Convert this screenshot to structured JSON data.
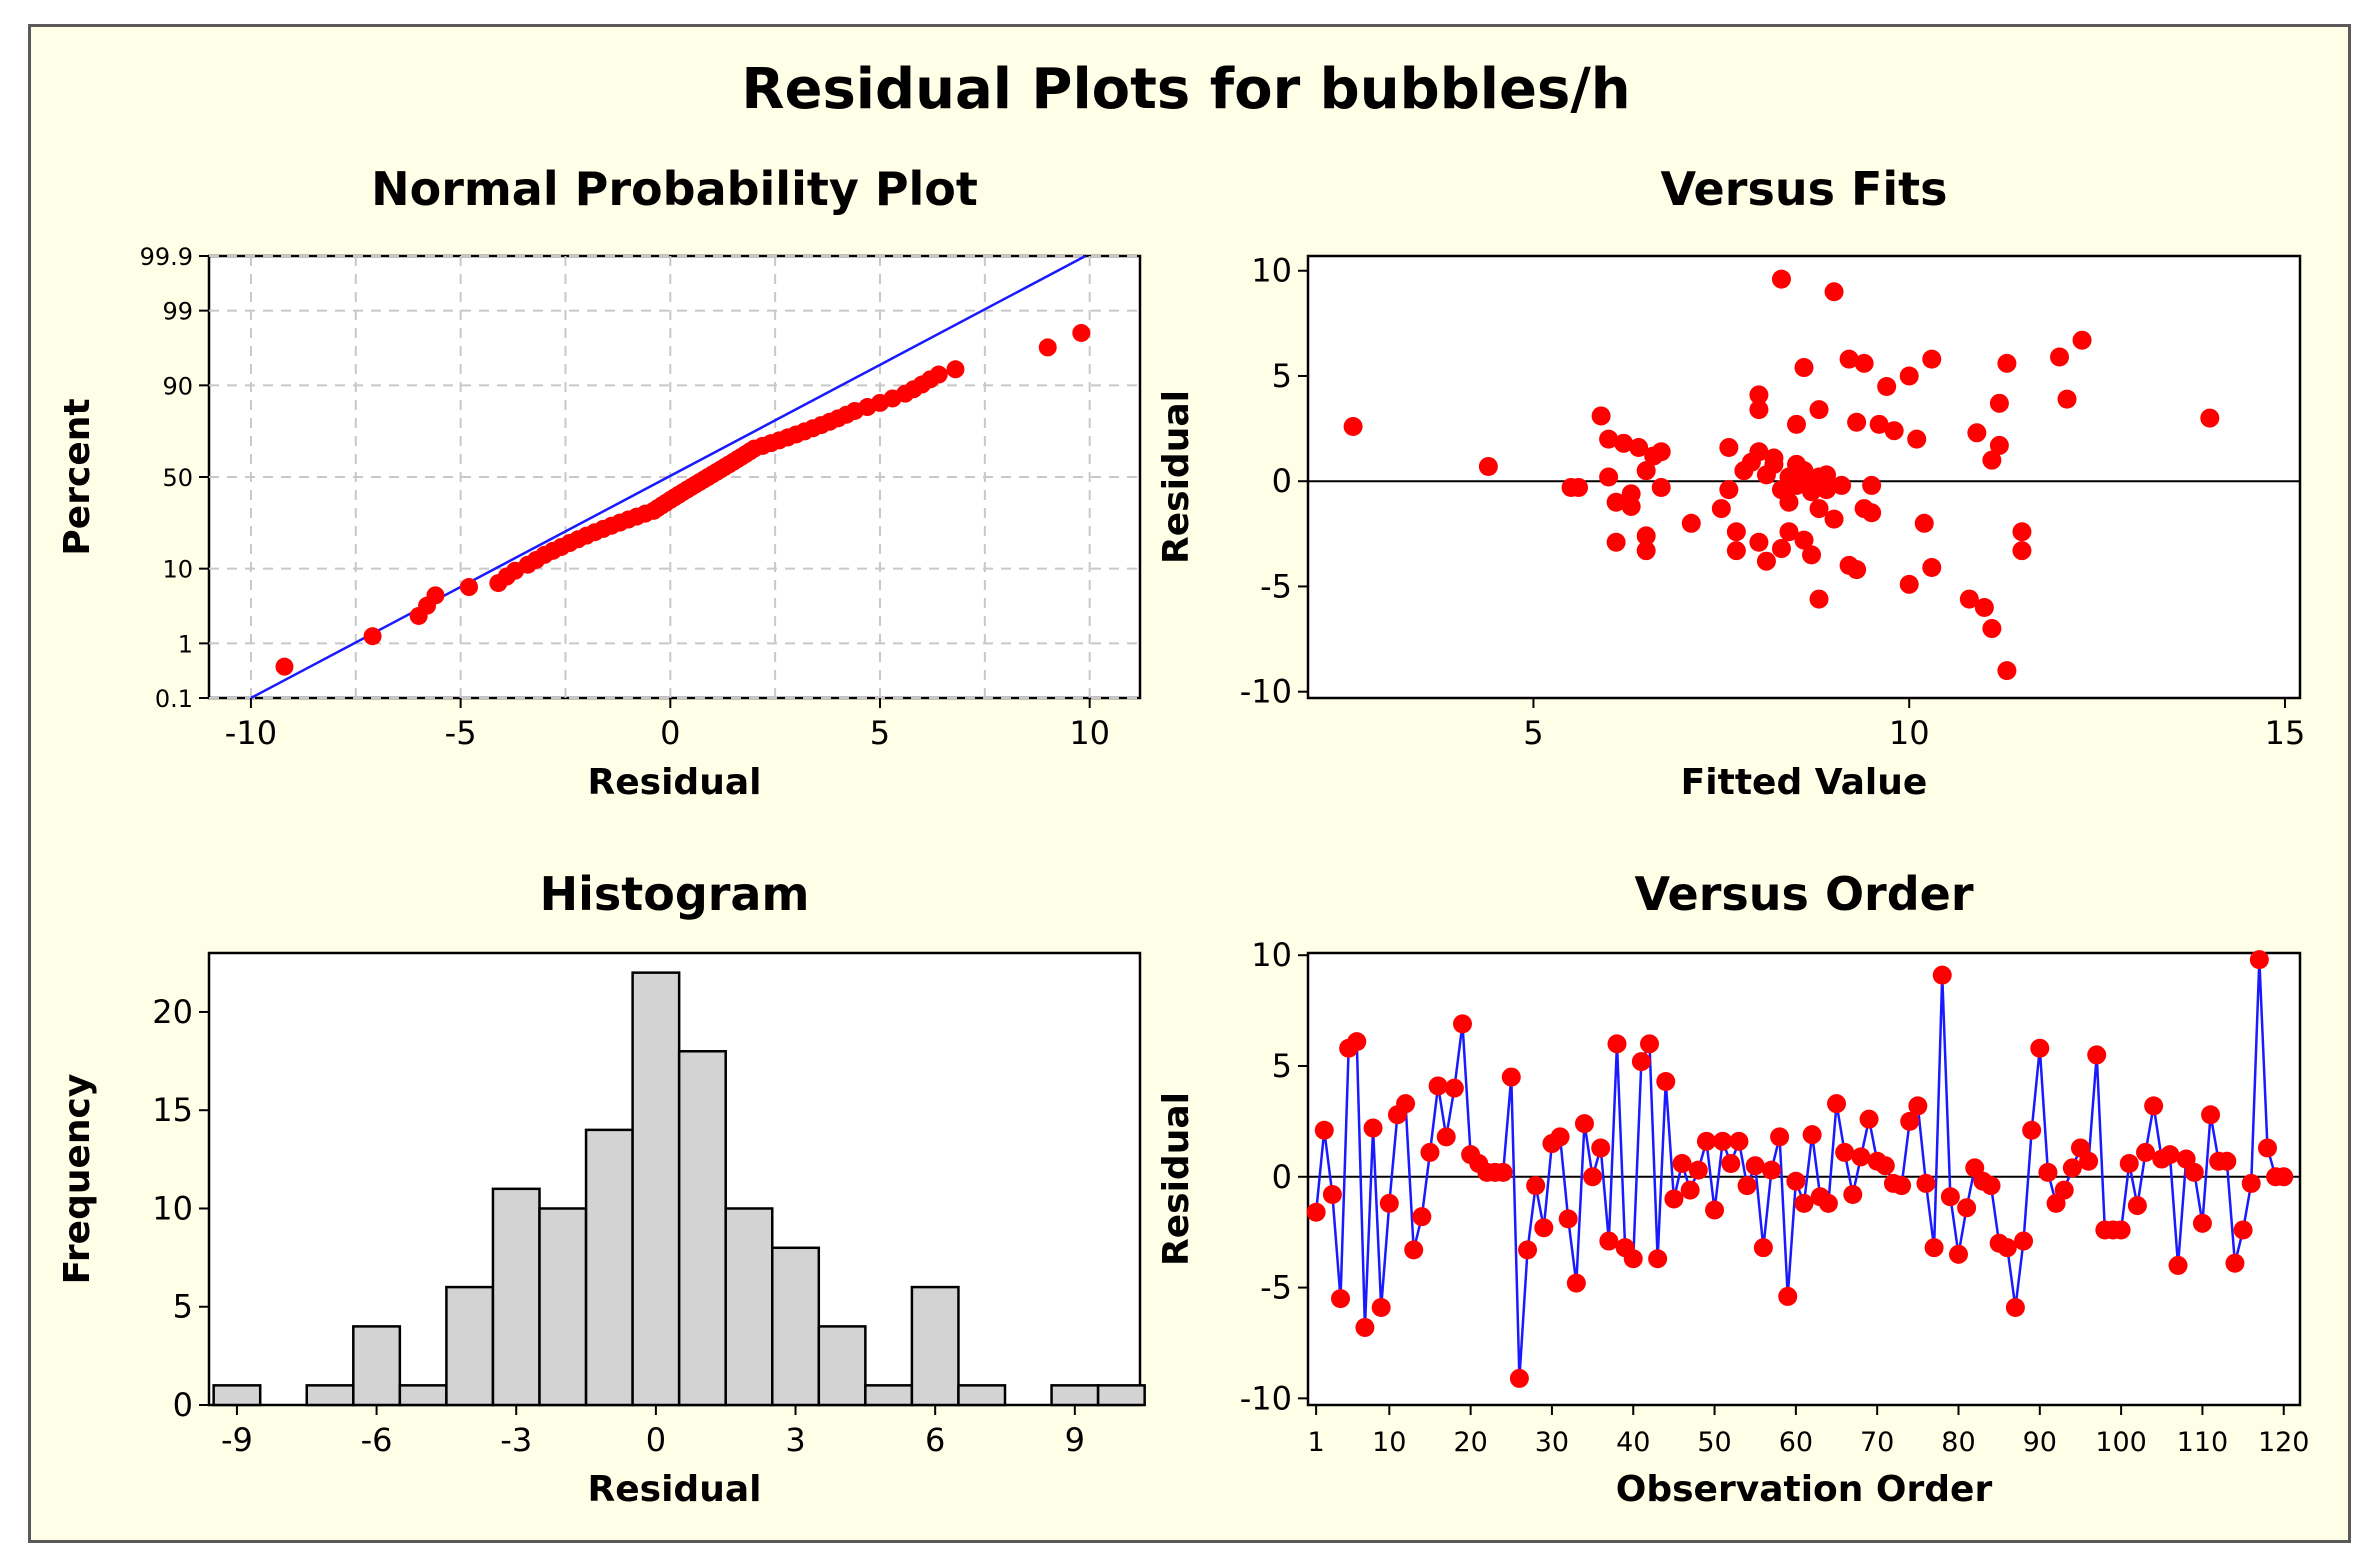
{
  "window": {
    "title": "Residual Plots for bubbles/h"
  },
  "colors": {
    "point": "#ff0000",
    "line": "#1a1aff",
    "bar_fill": "#d3d3d3",
    "bar_stroke": "#000000",
    "background": "#ffffe8",
    "grid": "#c8c8c8"
  },
  "chart_data": [
    {
      "type": "scatter",
      "title": "Normal Probability Plot",
      "xlabel": "Residual",
      "ylabel": "Percent",
      "xlim": [
        -11.0,
        11.2
      ],
      "xticks": [
        -10,
        -5,
        0,
        5,
        10
      ],
      "xtick_labels": [
        "-10",
        "-5",
        "0",
        "5",
        "10"
      ],
      "yticks": [
        0.1,
        1,
        10,
        50,
        90,
        99,
        99.9
      ],
      "ytick_labels": [
        "0.1",
        "1",
        "10",
        "50",
        "90",
        "99",
        "99.9"
      ],
      "grid": true,
      "fit_line": {
        "x": [
          -10.0,
          9.9
        ],
        "y": [
          0.1,
          99.9
        ]
      },
      "points": [
        [
          -9.2,
          0.4
        ],
        [
          -7.1,
          1.3
        ],
        [
          -6.0,
          2.6
        ],
        [
          -5.8,
          3.6
        ],
        [
          -5.6,
          4.9
        ],
        [
          -4.8,
          6.2
        ],
        [
          -4.1,
          6.9
        ],
        [
          -3.9,
          8.2
        ],
        [
          -3.7,
          9.5
        ],
        [
          -3.4,
          11.0
        ],
        [
          -3.2,
          12.3
        ],
        [
          -3.0,
          13.8
        ],
        [
          -2.8,
          15.1
        ],
        [
          -2.6,
          16.4
        ],
        [
          -2.4,
          17.8
        ],
        [
          -2.2,
          19.2
        ],
        [
          -2.0,
          20.6
        ],
        [
          -1.8,
          22.0
        ],
        [
          -1.6,
          23.4
        ],
        [
          -1.4,
          24.8
        ],
        [
          -1.2,
          26.2
        ],
        [
          -1.0,
          27.6
        ],
        [
          -0.8,
          29.0
        ],
        [
          -0.6,
          30.4
        ],
        [
          -0.4,
          31.8
        ],
        [
          -0.3,
          33.2
        ],
        [
          -0.2,
          34.6
        ],
        [
          -0.1,
          36.0
        ],
        [
          0.0,
          37.4
        ],
        [
          0.1,
          38.8
        ],
        [
          0.2,
          40.2
        ],
        [
          0.3,
          41.6
        ],
        [
          0.4,
          43.0
        ],
        [
          0.5,
          44.4
        ],
        [
          0.6,
          45.8
        ],
        [
          0.7,
          47.2
        ],
        [
          0.8,
          48.6
        ],
        [
          0.9,
          50.0
        ],
        [
          1.0,
          51.4
        ],
        [
          1.1,
          52.8
        ],
        [
          1.2,
          54.2
        ],
        [
          1.3,
          55.6
        ],
        [
          1.4,
          57.0
        ],
        [
          1.5,
          58.4
        ],
        [
          1.6,
          59.8
        ],
        [
          1.7,
          61.2
        ],
        [
          1.8,
          62.6
        ],
        [
          1.9,
          64.0
        ],
        [
          2.0,
          65.4
        ],
        [
          2.2,
          66.8
        ],
        [
          2.4,
          68.2
        ],
        [
          2.6,
          69.6
        ],
        [
          2.8,
          71.0
        ],
        [
          3.0,
          72.4
        ],
        [
          3.2,
          73.8
        ],
        [
          3.4,
          75.2
        ],
        [
          3.6,
          76.6
        ],
        [
          3.8,
          78.0
        ],
        [
          4.0,
          79.4
        ],
        [
          4.2,
          80.8
        ],
        [
          4.4,
          82.2
        ],
        [
          4.7,
          83.6
        ],
        [
          5.0,
          85.0
        ],
        [
          5.3,
          86.4
        ],
        [
          5.6,
          87.8
        ],
        [
          5.8,
          89.0
        ],
        [
          6.0,
          90.2
        ],
        [
          6.2,
          91.4
        ],
        [
          6.4,
          92.4
        ],
        [
          6.8,
          93.4
        ],
        [
          9.0,
          96.5
        ],
        [
          9.8,
          97.8
        ]
      ]
    },
    {
      "type": "scatter",
      "title": "Versus Fits",
      "xlabel": "Fitted Value",
      "ylabel": "Residual",
      "xlim": [
        2.0,
        15.2
      ],
      "ylim": [
        -10.3,
        10.7
      ],
      "xticks": [
        5,
        10,
        15
      ],
      "xtick_labels": [
        "5",
        "10",
        "15"
      ],
      "yticks": [
        -10,
        -5,
        0,
        5,
        10
      ],
      "ytick_labels": [
        "-10",
        "-5",
        "0",
        "5",
        "10"
      ],
      "reference_line_y": 0,
      "points": [
        [
          2.6,
          2.6
        ],
        [
          4.4,
          0.7
        ],
        [
          5.5,
          -0.3
        ],
        [
          5.6,
          -0.3
        ],
        [
          5.9,
          3.1
        ],
        [
          6.0,
          2.0
        ],
        [
          6.0,
          0.2
        ],
        [
          6.1,
          -1.0
        ],
        [
          6.1,
          -2.9
        ],
        [
          6.2,
          1.8
        ],
        [
          6.3,
          -0.6
        ],
        [
          6.3,
          -1.2
        ],
        [
          6.4,
          1.6
        ],
        [
          6.5,
          0.5
        ],
        [
          6.5,
          -2.6
        ],
        [
          6.5,
          -3.3
        ],
        [
          6.6,
          1.2
        ],
        [
          6.7,
          1.4
        ],
        [
          6.7,
          -0.3
        ],
        [
          7.1,
          -2.0
        ],
        [
          7.5,
          -1.3
        ],
        [
          7.6,
          1.6
        ],
        [
          7.6,
          -0.4
        ],
        [
          7.7,
          -2.4
        ],
        [
          7.7,
          -3.3
        ],
        [
          7.8,
          0.5
        ],
        [
          7.9,
          0.9
        ],
        [
          8.0,
          3.4
        ],
        [
          8.0,
          4.1
        ],
        [
          8.0,
          1.4
        ],
        [
          8.0,
          -2.9
        ],
        [
          8.1,
          0.3
        ],
        [
          8.1,
          -3.8
        ],
        [
          8.2,
          0.8
        ],
        [
          8.2,
          1.1
        ],
        [
          8.3,
          -0.4
        ],
        [
          8.3,
          -3.2
        ],
        [
          8.3,
          9.6
        ],
        [
          8.4,
          0.2
        ],
        [
          8.4,
          -1.0
        ],
        [
          8.4,
          -2.4
        ],
        [
          8.5,
          0.8
        ],
        [
          8.5,
          -0.2
        ],
        [
          8.5,
          2.7
        ],
        [
          8.6,
          5.4
        ],
        [
          8.6,
          0.5
        ],
        [
          8.6,
          -2.8
        ],
        [
          8.7,
          -0.5
        ],
        [
          8.7,
          -3.5
        ],
        [
          8.7,
          0.0
        ],
        [
          8.8,
          3.4
        ],
        [
          8.8,
          0.2
        ],
        [
          8.8,
          -1.3
        ],
        [
          8.8,
          -5.6
        ],
        [
          8.9,
          0.3
        ],
        [
          8.9,
          -0.4
        ],
        [
          9.0,
          -1.8
        ],
        [
          9.0,
          9.0
        ],
        [
          9.1,
          -0.2
        ],
        [
          9.2,
          -4.0
        ],
        [
          9.2,
          5.8
        ],
        [
          9.3,
          2.8
        ],
        [
          9.3,
          -4.2
        ],
        [
          9.4,
          5.6
        ],
        [
          9.4,
          -1.3
        ],
        [
          9.5,
          -0.2
        ],
        [
          9.5,
          -1.5
        ],
        [
          9.6,
          2.7
        ],
        [
          9.7,
          4.5
        ],
        [
          9.8,
          2.4
        ],
        [
          10.0,
          -4.9
        ],
        [
          10.0,
          5.0
        ],
        [
          10.1,
          2.0
        ],
        [
          10.2,
          -2.0
        ],
        [
          10.3,
          5.8
        ],
        [
          10.3,
          -4.1
        ],
        [
          10.8,
          -5.6
        ],
        [
          10.9,
          2.3
        ],
        [
          11.0,
          -6.0
        ],
        [
          11.1,
          1.0
        ],
        [
          11.1,
          -7.0
        ],
        [
          11.2,
          3.7
        ],
        [
          11.2,
          1.7
        ],
        [
          11.3,
          -9.0
        ],
        [
          11.3,
          5.6
        ],
        [
          11.5,
          -2.4
        ],
        [
          11.5,
          -3.3
        ],
        [
          12.0,
          5.9
        ],
        [
          12.1,
          3.9
        ],
        [
          12.3,
          6.7
        ],
        [
          14.0,
          3.0
        ]
      ]
    },
    {
      "type": "bar",
      "title": "Histogram",
      "xlabel": "Residual",
      "ylabel": "Frequency",
      "bin_width": 1,
      "bin_centers": [
        -9,
        -8,
        -7,
        -6,
        -5,
        -4,
        -3,
        -2,
        -1,
        0,
        1,
        2,
        3,
        4,
        5,
        6,
        7,
        8,
        9,
        10
      ],
      "values": [
        1,
        0,
        1,
        4,
        1,
        6,
        11,
        10,
        14,
        22,
        18,
        10,
        8,
        4,
        1,
        6,
        1,
        0,
        1,
        1
      ],
      "xlim": [
        -9.6,
        10.4
      ],
      "ylim": [
        0,
        23
      ],
      "xticks": [
        -9,
        -6,
        -3,
        0,
        3,
        6,
        9
      ],
      "xtick_labels": [
        "-9",
        "-6",
        "-3",
        "0",
        "3",
        "6",
        "9"
      ],
      "yticks": [
        0,
        5,
        10,
        15,
        20
      ],
      "ytick_labels": [
        "0",
        "5",
        "10",
        "15",
        "20"
      ]
    },
    {
      "type": "line",
      "title": "Versus Order",
      "xlabel": "Observation Order",
      "ylabel": "Residual",
      "xlim": [
        0,
        122
      ],
      "ylim": [
        -10.3,
        10.1
      ],
      "xticks": [
        1,
        10,
        20,
        30,
        40,
        50,
        60,
        70,
        80,
        90,
        100,
        110,
        120
      ],
      "xtick_labels": [
        "1",
        "10",
        "20",
        "30",
        "40",
        "50",
        "60",
        "70",
        "80",
        "90",
        "100",
        "110",
        "120"
      ],
      "yticks": [
        -10,
        -5,
        0,
        5,
        10
      ],
      "ytick_labels": [
        "-10",
        "-5",
        "0",
        "5",
        "10"
      ],
      "reference_line_y": 0,
      "values": [
        -1.6,
        2.1,
        -0.8,
        -5.5,
        5.8,
        6.1,
        -6.8,
        2.2,
        -5.9,
        -1.2,
        2.8,
        3.3,
        -3.3,
        -1.8,
        1.1,
        4.1,
        1.8,
        4.0,
        6.9,
        1.0,
        0.6,
        0.2,
        0.2,
        0.2,
        4.5,
        -9.1,
        -3.3,
        -0.4,
        -2.3,
        1.5,
        1.8,
        -1.9,
        -4.8,
        2.4,
        0.0,
        1.3,
        -2.9,
        6.0,
        -3.2,
        -3.7,
        5.2,
        6.0,
        -3.7,
        4.3,
        -1.0,
        0.6,
        -0.6,
        0.3,
        1.6,
        -1.5,
        1.6,
        0.6,
        1.6,
        -0.4,
        0.5,
        -3.2,
        0.3,
        1.8,
        -5.4,
        -0.2,
        -1.2,
        1.9,
        -0.9,
        -1.2,
        3.3,
        1.1,
        -0.8,
        0.9,
        2.6,
        0.7,
        0.5,
        -0.3,
        -0.4,
        2.5,
        3.2,
        -0.3,
        -3.2,
        9.1,
        -0.9,
        -3.5,
        -1.4,
        0.4,
        -0.2,
        -0.4,
        -3.0,
        -3.2,
        -5.9,
        -2.9,
        2.1,
        5.8,
        0.2,
        -1.2,
        -0.6,
        0.4,
        1.3,
        0.7,
        5.5,
        -2.4,
        -2.4,
        -2.4,
        0.6,
        -1.3,
        1.1,
        3.2,
        0.8,
        1.0,
        -4.0,
        0.8,
        0.2,
        -2.1,
        2.8,
        0.7,
        0.7,
        -3.9,
        -2.4,
        -0.3,
        9.8,
        1.3,
        0.0,
        0.0
      ]
    }
  ]
}
